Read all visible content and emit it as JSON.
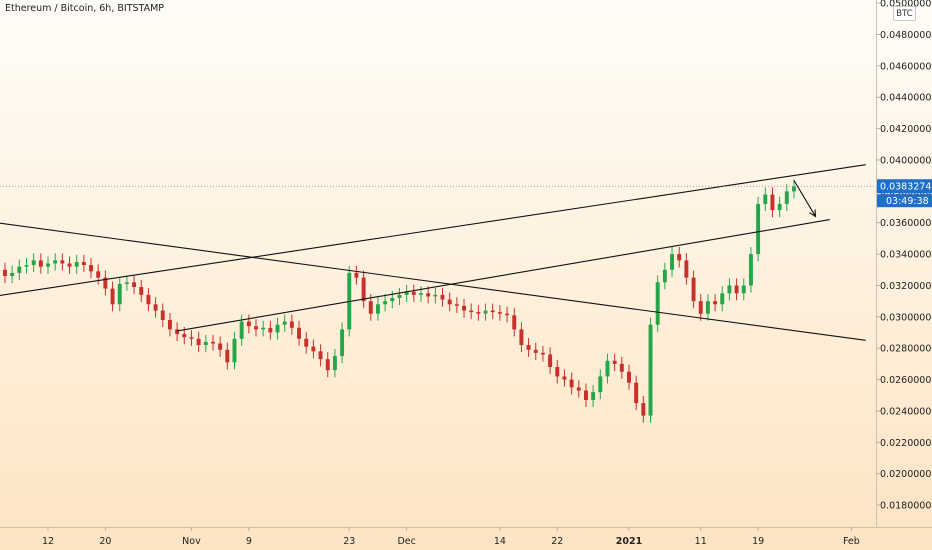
{
  "header": {
    "title": "Ethereum / Bitcoin, 6h, BITSTAMP"
  },
  "axis": {
    "currency_badge": "BTC"
  },
  "last_price": {
    "value": "0.03832741",
    "countdown": "03:49:38"
  },
  "colors": {
    "bg_top": "#fffdf8",
    "bg_bottom": "#fde4c3",
    "up": "#26a64a",
    "down": "#c9302c",
    "line": "#111111",
    "tag": "#1f6fc9",
    "dotted": "#888888"
  },
  "chart_data": {
    "type": "candlestick",
    "symbol": "ETHBTC",
    "timeframe": "6h",
    "ylim": [
      0.0166,
      0.0502
    ],
    "y_ticks": [
      "0.01800000",
      "0.02000000",
      "0.02200000",
      "0.02400000",
      "0.02600000",
      "0.02800000",
      "0.03000000",
      "0.03200000",
      "0.03400000",
      "0.03600000",
      "0.03800000",
      "0.04000000",
      "0.04200000",
      "0.04400000",
      "0.04600000",
      "0.04800000",
      "0.05000000"
    ],
    "x_ticks": [
      {
        "label": "12",
        "date": "2020-10-12"
      },
      {
        "label": "20",
        "date": "2020-10-20"
      },
      {
        "label": "Nov",
        "date": "2020-11-01"
      },
      {
        "label": "9",
        "date": "2020-11-09"
      },
      {
        "label": "23",
        "date": "2020-11-23"
      },
      {
        "label": "Dec",
        "date": "2020-12-01"
      },
      {
        "label": "14",
        "date": "2020-12-14"
      },
      {
        "label": "22",
        "date": "2020-12-22"
      },
      {
        "label": "2021",
        "date": "2021-01-01",
        "bold": true
      },
      {
        "label": "11",
        "date": "2021-01-11"
      },
      {
        "label": "19",
        "date": "2021-01-19"
      },
      {
        "label": "Feb",
        "date": "2021-02-01"
      }
    ],
    "last_value": 0.03832741,
    "closes": [
      [
        "2020-10-04",
        0.0334
      ],
      [
        "2020-10-05",
        0.033
      ],
      [
        "2020-10-06",
        0.0326
      ],
      [
        "2020-10-07",
        0.0328
      ],
      [
        "2020-10-08",
        0.0332
      ],
      [
        "2020-10-09",
        0.0333
      ],
      [
        "2020-10-10",
        0.0336
      ],
      [
        "2020-10-11",
        0.0332
      ],
      [
        "2020-10-12",
        0.0334
      ],
      [
        "2020-10-13",
        0.0336
      ],
      [
        "2020-10-14",
        0.0334
      ],
      [
        "2020-10-15",
        0.0332
      ],
      [
        "2020-10-16",
        0.0335
      ],
      [
        "2020-10-17",
        0.0333
      ],
      [
        "2020-10-18",
        0.0329
      ],
      [
        "2020-10-19",
        0.0325
      ],
      [
        "2020-10-20",
        0.0318
      ],
      [
        "2020-10-21",
        0.0308
      ],
      [
        "2020-10-22",
        0.0321
      ],
      [
        "2020-10-23",
        0.0322
      ],
      [
        "2020-10-24",
        0.0319
      ],
      [
        "2020-10-25",
        0.0314
      ],
      [
        "2020-10-26",
        0.0308
      ],
      [
        "2020-10-27",
        0.0304
      ],
      [
        "2020-10-28",
        0.0298
      ],
      [
        "2020-10-29",
        0.0292
      ],
      [
        "2020-10-30",
        0.0289
      ],
      [
        "2020-10-31",
        0.0287
      ],
      [
        "2020-11-01",
        0.0286
      ],
      [
        "2020-11-02",
        0.0282
      ],
      [
        "2020-11-03",
        0.0284
      ],
      [
        "2020-11-04",
        0.0283
      ],
      [
        "2020-11-05",
        0.0279
      ],
      [
        "2020-11-06",
        0.0271
      ],
      [
        "2020-11-07",
        0.0286
      ],
      [
        "2020-11-08",
        0.0297
      ],
      [
        "2020-11-09",
        0.0294
      ],
      [
        "2020-11-10",
        0.0292
      ],
      [
        "2020-11-11",
        0.0293
      ],
      [
        "2020-11-12",
        0.029
      ],
      [
        "2020-11-13",
        0.0295
      ],
      [
        "2020-11-14",
        0.0297
      ],
      [
        "2020-11-15",
        0.0293
      ],
      [
        "2020-11-16",
        0.0286
      ],
      [
        "2020-11-17",
        0.0281
      ],
      [
        "2020-11-18",
        0.0278
      ],
      [
        "2020-11-19",
        0.0273
      ],
      [
        "2020-11-20",
        0.0266
      ],
      [
        "2020-11-21",
        0.0275
      ],
      [
        "2020-11-22",
        0.0292
      ],
      [
        "2020-11-23",
        0.0328
      ],
      [
        "2020-11-24",
        0.0325
      ],
      [
        "2020-11-25",
        0.031
      ],
      [
        "2020-11-26",
        0.0302
      ],
      [
        "2020-11-27",
        0.0308
      ],
      [
        "2020-11-28",
        0.031
      ],
      [
        "2020-11-29",
        0.0312
      ],
      [
        "2020-11-30",
        0.0314
      ],
      [
        "2020-12-01",
        0.0316
      ],
      [
        "2020-12-02",
        0.0314
      ],
      [
        "2020-12-03",
        0.0315
      ],
      [
        "2020-12-04",
        0.0313
      ],
      [
        "2020-12-05",
        0.0314
      ],
      [
        "2020-12-06",
        0.0311
      ],
      [
        "2020-12-07",
        0.0308
      ],
      [
        "2020-12-08",
        0.0307
      ],
      [
        "2020-12-09",
        0.0304
      ],
      [
        "2020-12-10",
        0.0303
      ],
      [
        "2020-12-11",
        0.0302
      ],
      [
        "2020-12-12",
        0.0304
      ],
      [
        "2020-12-13",
        0.0303
      ],
      [
        "2020-12-14",
        0.0302
      ],
      [
        "2020-12-15",
        0.0301
      ],
      [
        "2020-12-16",
        0.0292
      ],
      [
        "2020-12-17",
        0.0282
      ],
      [
        "2020-12-18",
        0.0279
      ],
      [
        "2020-12-19",
        0.0277
      ],
      [
        "2020-12-20",
        0.0276
      ],
      [
        "2020-12-21",
        0.0268
      ],
      [
        "2020-12-22",
        0.0262
      ],
      [
        "2020-12-23",
        0.026
      ],
      [
        "2020-12-24",
        0.0255
      ],
      [
        "2020-12-25",
        0.0253
      ],
      [
        "2020-12-26",
        0.0247
      ],
      [
        "2020-12-27",
        0.0252
      ],
      [
        "2020-12-28",
        0.0262
      ],
      [
        "2020-12-29",
        0.0272
      ],
      [
        "2020-12-30",
        0.027
      ],
      [
        "2020-12-31",
        0.0265
      ],
      [
        "2021-01-01",
        0.0258
      ],
      [
        "2021-01-02",
        0.0245
      ],
      [
        "2021-01-03",
        0.0237
      ],
      [
        "2021-01-04",
        0.0295
      ],
      [
        "2021-01-05",
        0.0322
      ],
      [
        "2021-01-06",
        0.033
      ],
      [
        "2021-01-07",
        0.034
      ],
      [
        "2021-01-08",
        0.0336
      ],
      [
        "2021-01-09",
        0.0325
      ],
      [
        "2021-01-10",
        0.031
      ],
      [
        "2021-01-11",
        0.0302
      ],
      [
        "2021-01-12",
        0.031
      ],
      [
        "2021-01-13",
        0.0308
      ],
      [
        "2021-01-14",
        0.0315
      ],
      [
        "2021-01-15",
        0.032
      ],
      [
        "2021-01-16",
        0.0315
      ],
      [
        "2021-01-17",
        0.032
      ],
      [
        "2021-01-18",
        0.034
      ],
      [
        "2021-01-19",
        0.0372
      ],
      [
        "2021-01-20",
        0.0378
      ],
      [
        "2021-01-21",
        0.0368
      ],
      [
        "2021-01-22",
        0.0372
      ],
      [
        "2021-01-23",
        0.038
      ],
      [
        "2021-01-24",
        0.0383
      ]
    ],
    "drawings": [
      {
        "type": "trendline",
        "from": [
          "2020-09-30",
          0.031
        ],
        "to": [
          "2021-02-03",
          0.0397
        ]
      },
      {
        "type": "trendline",
        "from": [
          "2020-10-30",
          0.0291
        ],
        "to": [
          "2021-01-29",
          0.0362
        ]
      },
      {
        "type": "trendline",
        "from": [
          "2020-09-30",
          0.0363
        ],
        "to": [
          "2021-02-03",
          0.0285
        ]
      },
      {
        "type": "arrow",
        "from": [
          "2021-01-24",
          0.0387
        ],
        "to": [
          "2021-01-27",
          0.0364
        ]
      }
    ]
  }
}
